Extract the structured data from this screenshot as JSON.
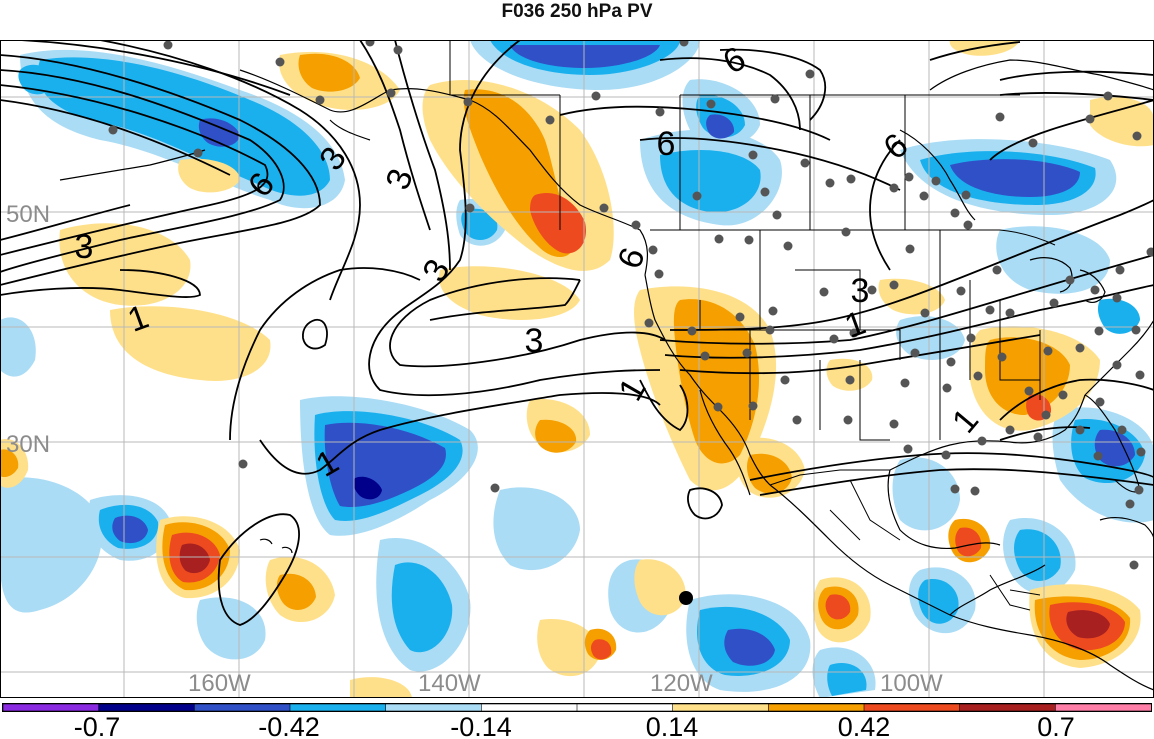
{
  "title": "F036 250 hPa PV",
  "latitude_labels": [
    "50N",
    "30N"
  ],
  "longitude_labels": [
    "160W",
    "140W",
    "120W",
    "100W"
  ],
  "contour_labels": [
    "3",
    "6",
    "3",
    "3",
    "3",
    "1",
    "3",
    "6",
    "6",
    "6",
    "6",
    "3",
    "1",
    "1",
    "1",
    "1",
    "3"
  ],
  "colorbar": {
    "tick_labels": [
      "-0.7",
      "-0.42",
      "-0.14",
      "0.14",
      "0.42",
      "0.7"
    ],
    "colors": [
      "#8a2be2",
      "#00008b",
      "#3050c8",
      "#1ab0ee",
      "#aadcf5",
      "#ffffff",
      "#ffffff",
      "#ffe08a",
      "#f5a000",
      "#ee4a20",
      "#a82020",
      "#ff7fa8"
    ]
  }
}
